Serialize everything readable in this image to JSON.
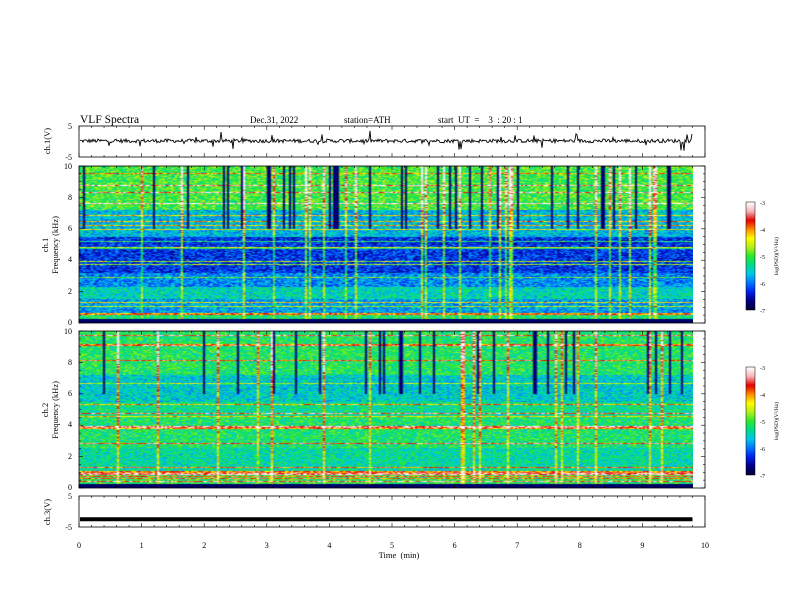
{
  "header": {
    "title": "VLF  Spectra",
    "date": "Dec.31, 2022",
    "station": "station=ATH",
    "start_ut": "start  UT  =    3  : 20 : 1"
  },
  "chart_data": [
    {
      "type": "line",
      "name": "ch1-waveform",
      "ylabel": "ch.1(V)",
      "yticks": [
        "5",
        "-5"
      ],
      "ylim": [
        -5,
        5
      ],
      "approx_level": 0.2,
      "noise": "spiky",
      "color": "#000000"
    },
    {
      "type": "heatmap",
      "name": "ch1-spectrogram",
      "ylabel": "Frequency  (kHz)",
      "channel_label": "ch.1",
      "yticks": [
        "0",
        "2",
        "4",
        "6",
        "8",
        "10"
      ],
      "ylim": [
        0,
        10
      ],
      "colorbar": {
        "label": "log(PSD)(V²/Hz)",
        "ticks": [
          "-3",
          "-4",
          "-5",
          "-6",
          "-7"
        ],
        "range": [
          -7,
          -3
        ]
      }
    },
    {
      "type": "heatmap",
      "name": "ch2-spectrogram",
      "ylabel": "Frequency  (kHz)",
      "channel_label": "ch.2",
      "yticks": [
        "0",
        "2",
        "4",
        "6",
        "8",
        "10"
      ],
      "ylim": [
        0,
        10
      ],
      "colorbar": {
        "label": "log(PSD)(V²/Hz)",
        "ticks": [
          "-3",
          "-4",
          "-5",
          "-6",
          "-7"
        ],
        "range": [
          -7,
          -3
        ]
      }
    },
    {
      "type": "line",
      "name": "ch3-waveform",
      "ylabel": "ch.3(V)",
      "yticks": [
        "5",
        "-5"
      ],
      "ylim": [
        -5,
        5
      ],
      "approx_level": -2.5,
      "noise": "flat",
      "color": "#000000"
    }
  ],
  "xaxis": {
    "label": "Time  (min)",
    "ticks": [
      "0",
      "1",
      "2",
      "3",
      "4",
      "5",
      "6",
      "7",
      "8",
      "9",
      "10"
    ],
    "xlim": [
      0,
      10
    ],
    "data_end": 9.8
  },
  "colormap": [
    "#000033",
    "#00008b",
    "#0022ee",
    "#0077ff",
    "#00c8e8",
    "#00dc8c",
    "#2ee82e",
    "#b4f01a",
    "#ffff00",
    "#ff8c00",
    "#e60000",
    "#f5b5b5",
    "#ffffff"
  ]
}
